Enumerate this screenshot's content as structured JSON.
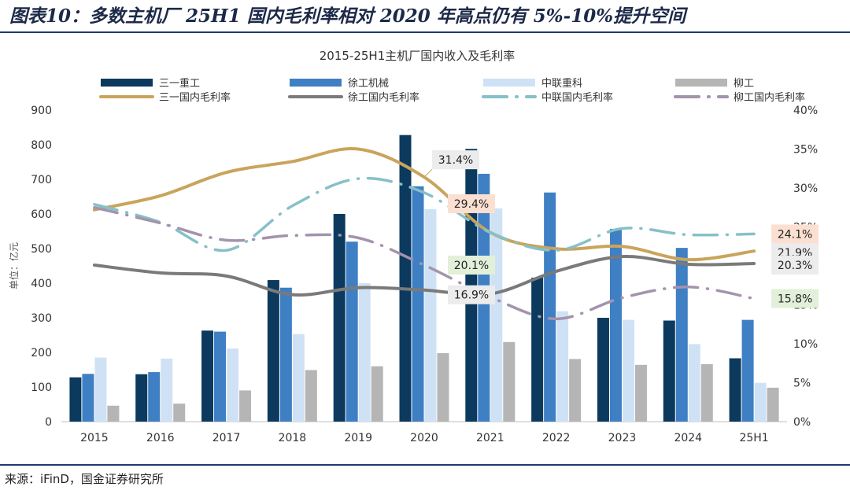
{
  "figure_title": "图表10：多数主机厂 25H1 国内毛利率相对 2020 年高点仍有 5%-10%提升空间",
  "source": "来源：iFinD，国金证券研究所",
  "chart_data": {
    "type": "bar+line",
    "title": "2015-25H1主机厂国内收入及毛利率",
    "categories": [
      "2015",
      "2016",
      "2017",
      "2018",
      "2019",
      "2020",
      "2021",
      "2022",
      "2023",
      "2024",
      "25H1"
    ],
    "left_axis": {
      "label": "单位：亿元",
      "min": 0,
      "max": 900,
      "ticks": [
        "0",
        "100",
        "200",
        "300",
        "400",
        "500",
        "600",
        "700",
        "800",
        "900"
      ]
    },
    "right_axis": {
      "min": 0,
      "max": 40,
      "ticks": [
        "0%",
        "5%",
        "10%",
        "15%",
        "20%",
        "25%",
        "30%",
        "35%",
        "40%"
      ]
    },
    "bar_series": [
      {
        "name": "三一重工",
        "color": "#0b3a5e",
        "values": [
          128,
          137,
          263,
          409,
          600,
          828,
          788,
          416,
          300,
          292,
          183
        ]
      },
      {
        "name": "徐工机械",
        "color": "#3f7fc3",
        "values": [
          138,
          143,
          260,
          387,
          520,
          680,
          716,
          662,
          557,
          502,
          294
        ]
      },
      {
        "name": "中联重科",
        "color": "#cfe2f5",
        "values": [
          185,
          182,
          211,
          253,
          400,
          614,
          616,
          319,
          294,
          224,
          112
        ]
      },
      {
        "name": "柳工",
        "color": "#b5b5b5",
        "values": [
          46,
          52,
          90,
          149,
          160,
          198,
          230,
          181,
          164,
          166,
          98
        ]
      }
    ],
    "line_series": [
      {
        "name": "三一国内毛利率",
        "color": "#c9a45c",
        "style": "solid",
        "values": [
          27.2,
          29.0,
          32.0,
          33.4,
          35.0,
          31.4,
          24.3,
          22.2,
          22.5,
          20.8,
          21.9
        ]
      },
      {
        "name": "徐工国内毛利率",
        "color": "#7a7a7a",
        "style": "solid",
        "values": [
          20.1,
          19.1,
          18.7,
          16.3,
          17.2,
          16.9,
          16.4,
          19.3,
          21.2,
          20.2,
          20.3
        ]
      },
      {
        "name": "中联国内毛利率",
        "color": "#86c0c8",
        "style": "dashdot",
        "values": [
          27.9,
          25.6,
          22.0,
          27.7,
          31.2,
          29.4,
          24.3,
          22.0,
          24.8,
          24.0,
          24.1
        ]
      },
      {
        "name": "柳工国内毛利率",
        "color": "#a493ac",
        "style": "dashdot",
        "values": [
          27.5,
          25.5,
          23.3,
          23.9,
          23.6,
          20.1,
          16.0,
          13.2,
          15.9,
          17.3,
          15.8
        ]
      }
    ],
    "data_labels": [
      {
        "text": "31.4%",
        "series": "三一国内毛利率",
        "category": "2020",
        "value": 31.4,
        "bg": "#ececec"
      },
      {
        "text": "29.4%",
        "series": "中联国内毛利率",
        "category": "2020",
        "value": 29.4,
        "bg": "#fbe0d2"
      },
      {
        "text": "20.1%",
        "series": "柳工国内毛利率",
        "category": "2020",
        "value": 20.1,
        "bg": "#e2f0d9"
      },
      {
        "text": "16.9%",
        "series": "徐工国内毛利率",
        "category": "2020",
        "value": 16.9,
        "bg": "#ececec"
      },
      {
        "text": "24.1%",
        "series": "中联国内毛利率",
        "category": "25H1",
        "value": 24.1,
        "bg": "#fbe0d2"
      },
      {
        "text": "21.9%",
        "series": "三一国内毛利率",
        "category": "25H1",
        "value": 21.9,
        "bg": "#ececec"
      },
      {
        "text": "20.3%",
        "series": "徐工国内毛利率",
        "category": "25H1",
        "value": 20.3,
        "bg": "#ececec"
      },
      {
        "text": "15.8%",
        "series": "柳工国内毛利率",
        "category": "25H1",
        "value": 15.8,
        "bg": "#e2f0d9"
      }
    ]
  }
}
